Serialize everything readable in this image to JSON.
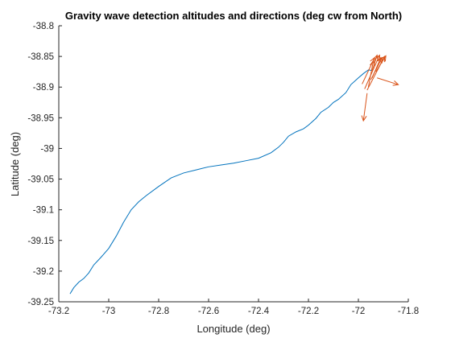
{
  "chart_data": {
    "type": "line",
    "title": "Gravity wave detection altitudes and directions (deg cw from North)",
    "xlabel": "Longitude (deg)",
    "ylabel": "Latitude (deg)",
    "xlim": [
      -73.2,
      -71.8
    ],
    "ylim": [
      -39.25,
      -38.8
    ],
    "x_ticks": [
      -73.2,
      -73,
      -72.8,
      -72.6,
      -72.4,
      -72.2,
      -72,
      -71.8
    ],
    "x_tick_labels": [
      "-73.2",
      "-73",
      "-72.8",
      "-72.6",
      "-72.4",
      "-72.2",
      "-72",
      "-71.8"
    ],
    "y_ticks": [
      -38.8,
      -38.85,
      -38.9,
      -38.95,
      -39,
      -39.05,
      -39.1,
      -39.15,
      -39.2,
      -39.25
    ],
    "y_tick_labels": [
      "-38.8",
      "-38.85",
      "-38.9",
      "-38.95",
      "-39",
      "-39.05",
      "-39.1",
      "-39.15",
      "-39.2",
      "-39.25"
    ],
    "grid": false,
    "legend": "none",
    "colors": {
      "track": "#0072BD",
      "arrows": "#D95319",
      "axes": "#262626"
    },
    "series": [
      {
        "x": [
          -73.155,
          -73.14,
          -73.12,
          -73.1,
          -73.08,
          -73.06,
          -73.03,
          -73.0,
          -72.97,
          -72.94,
          -72.91,
          -72.88,
          -72.85,
          -72.8,
          -72.75,
          -72.7,
          -72.65,
          -72.6,
          -72.55,
          -72.5,
          -72.45,
          -72.4,
          -72.35,
          -72.32,
          -72.3,
          -72.28,
          -72.25,
          -72.22,
          -72.2,
          -72.17,
          -72.15,
          -72.12,
          -72.1,
          -72.08,
          -72.05,
          -72.03,
          -72.0,
          -71.98,
          -71.96,
          -71.945
        ],
        "y": [
          -39.237,
          -39.227,
          -39.218,
          -39.212,
          -39.203,
          -39.19,
          -39.177,
          -39.163,
          -39.143,
          -39.12,
          -39.1,
          -39.087,
          -39.077,
          -39.062,
          -39.048,
          -39.04,
          -39.035,
          -39.03,
          -39.027,
          -39.024,
          -39.02,
          -39.016,
          -39.007,
          -38.998,
          -38.99,
          -38.98,
          -38.973,
          -38.968,
          -38.962,
          -38.951,
          -38.941,
          -38.933,
          -38.925,
          -38.92,
          -38.909,
          -38.896,
          -38.885,
          -38.878,
          -38.872,
          -38.873
        ]
      }
    ],
    "arrows": [
      {
        "from": [
          -71.945,
          -38.873
        ],
        "to": [
          -71.925,
          -38.848
        ]
      },
      {
        "from": [
          -71.975,
          -38.903
        ],
        "to": [
          -71.915,
          -38.848
        ]
      },
      {
        "from": [
          -71.945,
          -38.885
        ],
        "to": [
          -71.91,
          -38.852
        ]
      },
      {
        "from": [
          -71.93,
          -38.875
        ],
        "to": [
          -71.89,
          -38.849
        ]
      },
      {
        "from": [
          -71.985,
          -38.895
        ],
        "to": [
          -71.935,
          -38.852
        ]
      },
      {
        "from": [
          -71.965,
          -38.905
        ],
        "to": [
          -71.895,
          -38.85
        ]
      },
      {
        "from": [
          -71.96,
          -38.9
        ],
        "to": [
          -71.94,
          -38.857
        ]
      },
      {
        "from": [
          -71.95,
          -38.888
        ],
        "to": [
          -71.905,
          -38.852
        ]
      },
      {
        "from": [
          -71.925,
          -38.885
        ],
        "to": [
          -71.84,
          -38.896
        ]
      },
      {
        "from": [
          -71.965,
          -38.91
        ],
        "to": [
          -71.98,
          -38.955
        ]
      }
    ]
  }
}
